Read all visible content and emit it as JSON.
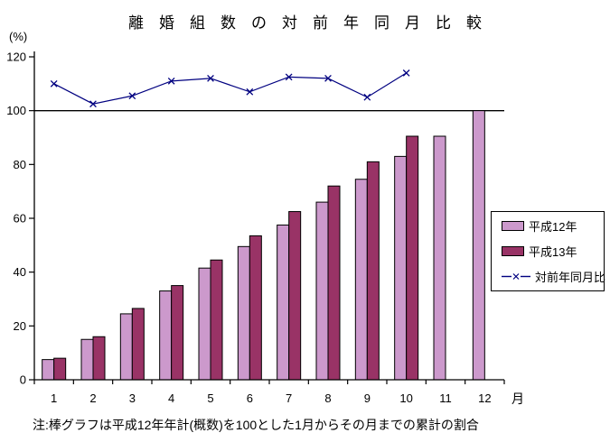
{
  "title": "離　婚　組　数　の　対　前　年　同　月　比　較",
  "y_axis_unit": "(%)",
  "x_axis_unit": "月",
  "note": "注:棒グラフは平成12年年計(概数)を100とした1月からその月までの累計の割合",
  "chart_data": {
    "type": "bar",
    "title": "離婚組数の対前年同月比較",
    "categories": [
      "1",
      "2",
      "3",
      "4",
      "5",
      "6",
      "7",
      "8",
      "9",
      "10",
      "11",
      "12"
    ],
    "x_axis_label": "月",
    "y_axis_label": "(%)",
    "ylim": [
      0,
      120
    ],
    "ytick_interval": 20,
    "yticks": [
      0,
      20,
      40,
      60,
      80,
      100,
      120
    ],
    "reference_line": 100,
    "grid": "off",
    "legend_position": "right",
    "series": [
      {
        "name": "平成12年",
        "type": "bar",
        "color": "#CC99CC",
        "values": [
          7.5,
          15,
          24.5,
          33,
          41.5,
          49.5,
          57.5,
          66,
          74.5,
          83,
          90.5,
          100
        ]
      },
      {
        "name": "平成13年",
        "type": "bar",
        "color": "#993366",
        "values": [
          8,
          16,
          26.5,
          35,
          44.5,
          53.5,
          62.5,
          72,
          81,
          90.5,
          null,
          null
        ]
      },
      {
        "name": "対前年同月比",
        "type": "line",
        "marker": "x",
        "color": "#000080",
        "values": [
          110,
          102.5,
          105.5,
          111,
          112,
          107,
          112.5,
          112,
          105,
          114,
          null,
          null
        ]
      }
    ]
  }
}
